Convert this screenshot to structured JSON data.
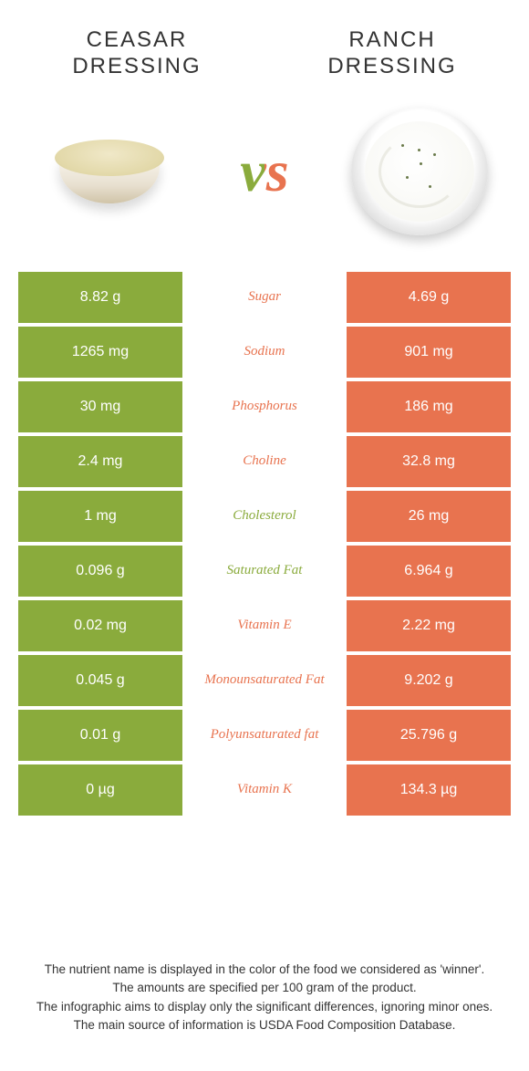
{
  "colors": {
    "left": "#8aab3c",
    "right": "#e8734f",
    "text_dark": "#333333",
    "white": "#ffffff"
  },
  "food_left": {
    "line1": "Ceasar",
    "line2": "Dressing"
  },
  "food_right": {
    "line1": "Ranch",
    "line2": "Dressing"
  },
  "vs": "vs",
  "rows": [
    {
      "left": "8.82 g",
      "label": "Sugar",
      "right": "4.69 g",
      "winner": "right"
    },
    {
      "left": "1265 mg",
      "label": "Sodium",
      "right": "901 mg",
      "winner": "right"
    },
    {
      "left": "30 mg",
      "label": "Phosphorus",
      "right": "186 mg",
      "winner": "right"
    },
    {
      "left": "2.4 mg",
      "label": "Choline",
      "right": "32.8 mg",
      "winner": "right"
    },
    {
      "left": "1 mg",
      "label": "Cholesterol",
      "right": "26 mg",
      "winner": "left"
    },
    {
      "left": "0.096 g",
      "label": "Saturated Fat",
      "right": "6.964 g",
      "winner": "left"
    },
    {
      "left": "0.02 mg",
      "label": "Vitamin E",
      "right": "2.22 mg",
      "winner": "right"
    },
    {
      "left": "0.045 g",
      "label": "Monounsaturated Fat",
      "right": "9.202 g",
      "winner": "right"
    },
    {
      "left": "0.01 g",
      "label": "Polyunsaturated fat",
      "right": "25.796 g",
      "winner": "right"
    },
    {
      "left": "0 µg",
      "label": "Vitamin K",
      "right": "134.3 µg",
      "winner": "right"
    }
  ],
  "footer": [
    "The nutrient name is displayed in the color of the food we considered as 'winner'.",
    "The amounts are specified per 100 gram of the product.",
    "The infographic aims to display only the significant differences, ignoring minor ones.",
    "The main source of information is USDA Food Composition Database."
  ]
}
